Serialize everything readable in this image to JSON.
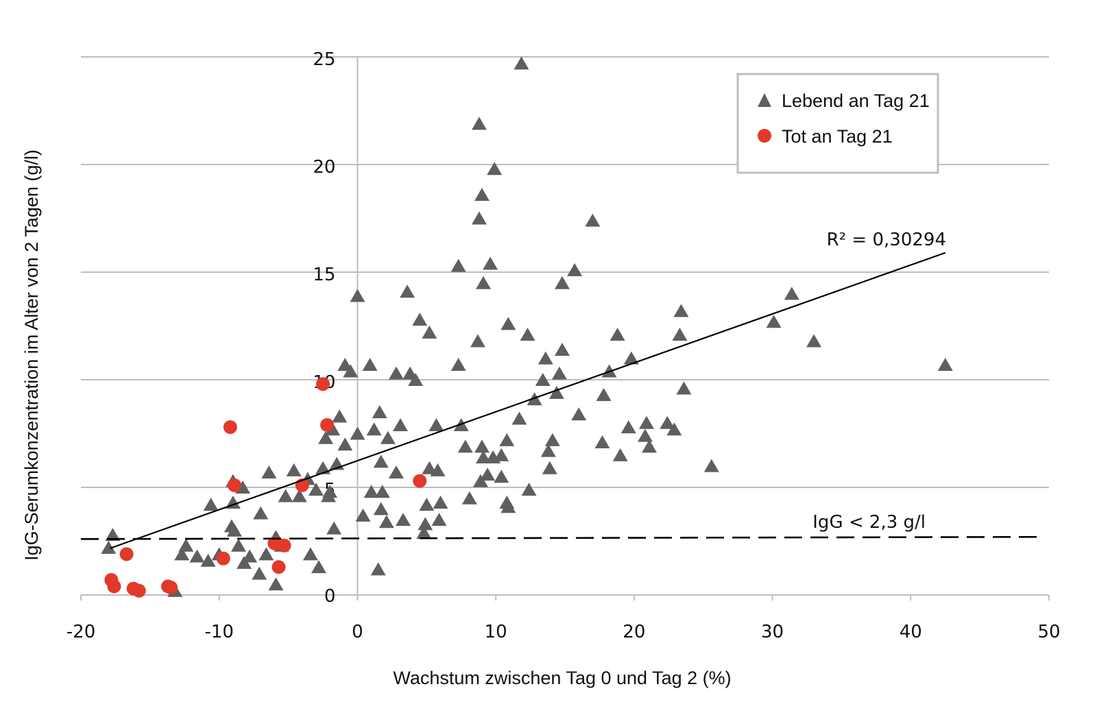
{
  "chart_data": {
    "type": "scatter",
    "xlabel": "Wachstum zwischen Tag 0 und Tag 2 (%)",
    "ylabel": "IgG-Serumkonzentration im Alter von 2 Tagen (g/l)",
    "xlim": [
      -20,
      50
    ],
    "ylim": [
      0,
      25
    ],
    "x_ticks": [
      "-20",
      "-10",
      "0",
      "10",
      "20",
      "30",
      "40",
      "50"
    ],
    "y_ticks": [
      "0",
      "5",
      "10",
      "15",
      "20",
      "25"
    ],
    "grid": "horizontal",
    "legend_position": "top-right",
    "colors": {
      "alive": "#5f5f5f",
      "dead": "#e2392a",
      "grid": "#bdbdbd"
    },
    "series": [
      {
        "name": "Lebend an Tag 21",
        "marker": "triangle",
        "points": [
          [
            11.85,
            24.7
          ],
          [
            8.8,
            21.9
          ],
          [
            9.9,
            19.8
          ],
          [
            9.0,
            18.6
          ],
          [
            8.8,
            17.5
          ],
          [
            17.0,
            17.4
          ],
          [
            7.3,
            15.3
          ],
          [
            9.6,
            15.4
          ],
          [
            15.7,
            15.1
          ],
          [
            9.1,
            14.5
          ],
          [
            14.8,
            14.5
          ],
          [
            0,
            13.9
          ],
          [
            3.6,
            14.1
          ],
          [
            31.4,
            14.0
          ],
          [
            23.4,
            13.2
          ],
          [
            4.5,
            12.8
          ],
          [
            10.9,
            12.6
          ],
          [
            30.1,
            12.7
          ],
          [
            5.2,
            12.2
          ],
          [
            12.3,
            12.1
          ],
          [
            18.8,
            12.1
          ],
          [
            23.3,
            12.1
          ],
          [
            33.0,
            11.8
          ],
          [
            8.7,
            11.8
          ],
          [
            14.8,
            11.4
          ],
          [
            19.8,
            11.0
          ],
          [
            13.6,
            11.0
          ],
          [
            0.9,
            10.7
          ],
          [
            7.3,
            10.7
          ],
          [
            42.5,
            10.7
          ],
          [
            -0.9,
            10.7
          ],
          [
            -0.5,
            10.4
          ],
          [
            2.8,
            10.3
          ],
          [
            3.8,
            10.3
          ],
          [
            4.2,
            10.0
          ],
          [
            14.6,
            10.3
          ],
          [
            18.2,
            10.4
          ],
          [
            13.4,
            10.0
          ],
          [
            23.6,
            9.6
          ],
          [
            14.4,
            9.4
          ],
          [
            17.8,
            9.3
          ],
          [
            12.8,
            9.1
          ],
          [
            1.6,
            8.5
          ],
          [
            -1.3,
            8.3
          ],
          [
            16.0,
            8.4
          ],
          [
            11.7,
            8.2
          ],
          [
            5.7,
            7.9
          ],
          [
            7.5,
            7.9
          ],
          [
            3.1,
            7.9
          ],
          [
            20.9,
            8.0
          ],
          [
            22.4,
            8.0
          ],
          [
            19.6,
            7.8
          ],
          [
            22.9,
            7.7
          ],
          [
            1.2,
            7.7
          ],
          [
            0,
            7.5
          ],
          [
            -1.8,
            7.7
          ],
          [
            -2.3,
            7.3
          ],
          [
            2.2,
            7.3
          ],
          [
            10.8,
            7.2
          ],
          [
            14.1,
            7.2
          ],
          [
            20.8,
            7.4
          ],
          [
            -0.9,
            7.0
          ],
          [
            7.8,
            6.9
          ],
          [
            9.0,
            6.9
          ],
          [
            21.1,
            6.9
          ],
          [
            17.7,
            7.1
          ],
          [
            13.8,
            6.7
          ],
          [
            10.4,
            6.5
          ],
          [
            9.1,
            6.4
          ],
          [
            19.0,
            6.5
          ],
          [
            9.8,
            6.4
          ],
          [
            1.7,
            6.2
          ],
          [
            -1.5,
            6.1
          ],
          [
            25.6,
            6.0
          ],
          [
            -2.5,
            5.9
          ],
          [
            5.2,
            5.9
          ],
          [
            5.8,
            5.8
          ],
          [
            -4.6,
            5.8
          ],
          [
            -6.4,
            5.7
          ],
          [
            2.8,
            5.7
          ],
          [
            13.9,
            5.9
          ],
          [
            9.4,
            5.6
          ],
          [
            10.4,
            5.5
          ],
          [
            -3.6,
            5.4
          ],
          [
            8.9,
            5.3
          ],
          [
            -9.0,
            5.3
          ],
          [
            -8.3,
            5.0
          ],
          [
            -3.0,
            4.9
          ],
          [
            -2.0,
            4.8
          ],
          [
            1.0,
            4.8
          ],
          [
            1.8,
            4.8
          ],
          [
            12.4,
            4.9
          ],
          [
            -5.2,
            4.6
          ],
          [
            -4.2,
            4.6
          ],
          [
            -2.1,
            4.6
          ],
          [
            -10.6,
            4.2
          ],
          [
            -9.0,
            4.3
          ],
          [
            8.1,
            4.5
          ],
          [
            10.8,
            4.3
          ],
          [
            5.0,
            4.2
          ],
          [
            6.0,
            4.3
          ],
          [
            10.9,
            4.1
          ],
          [
            -7.0,
            3.8
          ],
          [
            0.4,
            3.7
          ],
          [
            1.7,
            4.0
          ],
          [
            2.1,
            3.4
          ],
          [
            3.3,
            3.5
          ],
          [
            5.9,
            3.5
          ],
          [
            4.9,
            3.3
          ],
          [
            -9.1,
            3.2
          ],
          [
            -8.9,
            3.0
          ],
          [
            -1.7,
            3.1
          ],
          [
            -17.7,
            2.8
          ],
          [
            4.8,
            2.9
          ],
          [
            -5.9,
            2.7
          ],
          [
            -18.0,
            2.2
          ],
          [
            -12.4,
            2.3
          ],
          [
            -8.6,
            2.3
          ],
          [
            -5.5,
            2.3
          ],
          [
            -12.7,
            1.9
          ],
          [
            -11.6,
            1.8
          ],
          [
            -6.6,
            1.9
          ],
          [
            -10.8,
            1.6
          ],
          [
            -7.8,
            1.8
          ],
          [
            -3.4,
            1.9
          ],
          [
            -10.0,
            1.9
          ],
          [
            -8.2,
            1.5
          ],
          [
            -7.1,
            1.0
          ],
          [
            -2.8,
            1.3
          ],
          [
            1.5,
            1.2
          ],
          [
            -5.9,
            0.5
          ],
          [
            -13.2,
            0.2
          ]
        ]
      },
      {
        "name": "Tot an Tag 21",
        "marker": "circle",
        "points": [
          [
            -2.5,
            9.8
          ],
          [
            -9.2,
            7.8
          ],
          [
            -2.2,
            7.9
          ],
          [
            -8.9,
            5.1
          ],
          [
            -4.0,
            5.1
          ],
          [
            4.5,
            5.3
          ],
          [
            -16.7,
            1.9
          ],
          [
            -6.0,
            2.4
          ],
          [
            -5.3,
            2.3
          ],
          [
            -9.7,
            1.7
          ],
          [
            -5.7,
            1.3
          ],
          [
            -17.8,
            0.7
          ],
          [
            -17.6,
            0.4
          ],
          [
            -16.2,
            0.3
          ],
          [
            -15.8,
            0.2
          ],
          [
            -13.7,
            0.4
          ],
          [
            -13.5,
            0.35
          ]
        ]
      }
    ],
    "trendline": {
      "label": "R² = 0,30294",
      "from": [
        -17.9,
        2.17
      ],
      "to": [
        42.5,
        15.9
      ]
    },
    "threshold": {
      "label": "IgG < 2,3 g/l",
      "from": [
        -20,
        2.6
      ],
      "to": [
        49.5,
        2.7
      ]
    }
  }
}
